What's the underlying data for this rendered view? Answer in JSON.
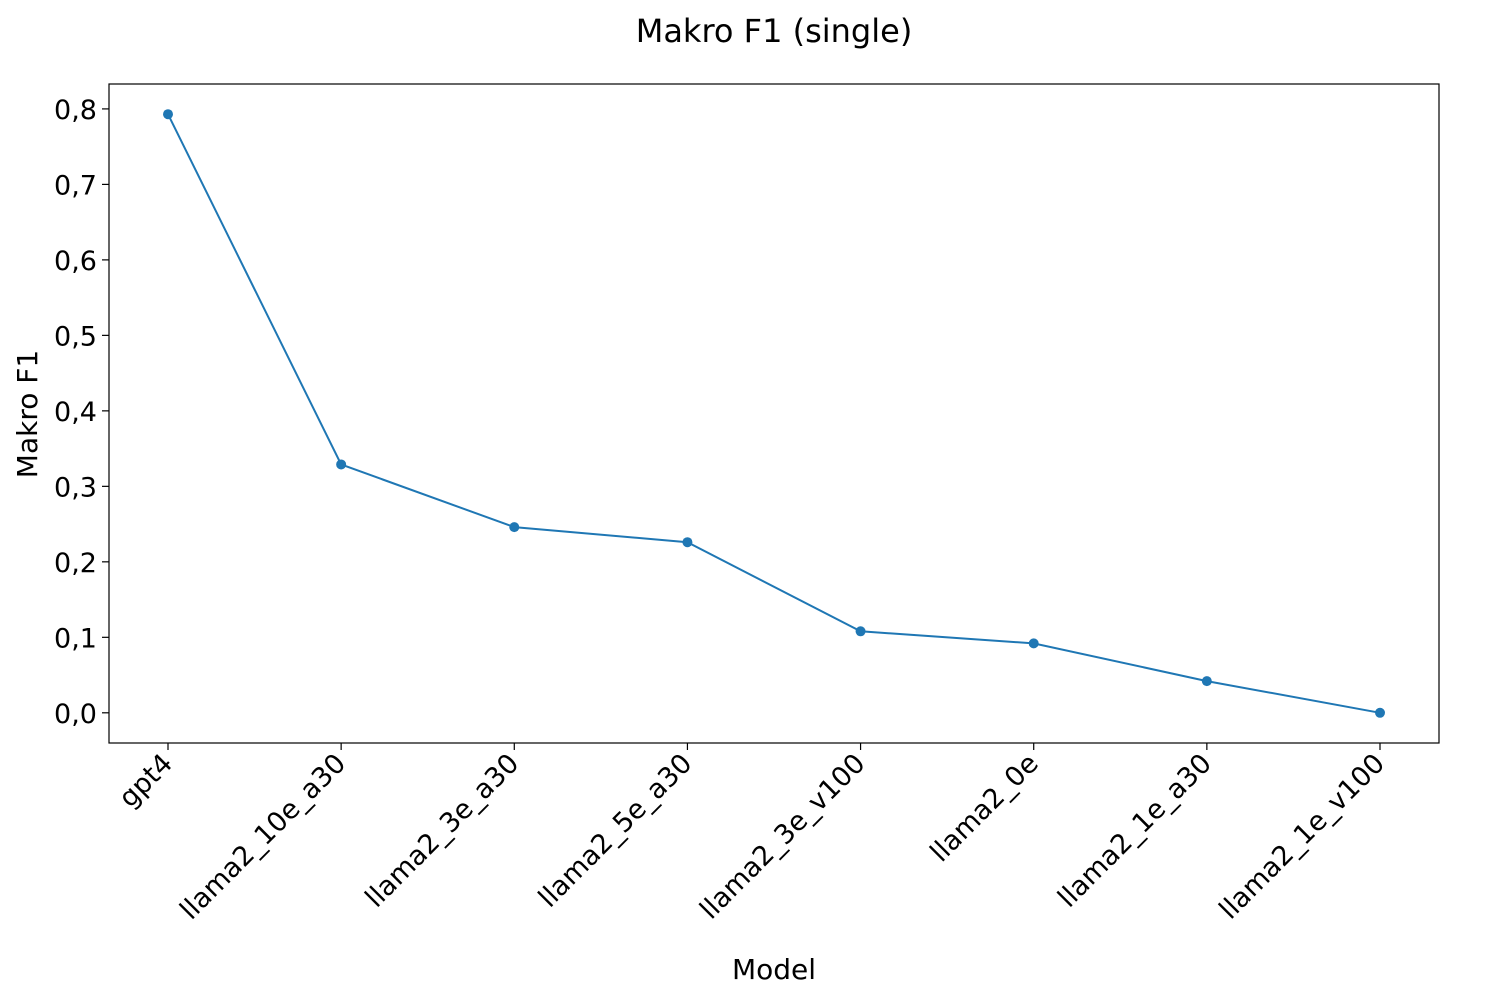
{
  "chart_data": {
    "type": "line",
    "title": "Makro F1 (single)",
    "xlabel": "Model",
    "ylabel": "Makro F1",
    "categories": [
      "gpt4",
      "llama2_10e_a30",
      "llama2_3e_a30",
      "llama2_5e_a30",
      "llama2_3e_v100",
      "llama2_0e",
      "llama2_1e_a30",
      "llama2_1e_v100"
    ],
    "series": [
      {
        "values": [
          0.793,
          0.329,
          0.246,
          0.226,
          0.108,
          0.092,
          0.042,
          0.0
        ]
      }
    ],
    "yticks": [
      0.0,
      0.1,
      0.2,
      0.3,
      0.4,
      0.5,
      0.6,
      0.7,
      0.8
    ],
    "ytick_labels": [
      "0,0",
      "0,1",
      "0,2",
      "0,3",
      "0,4",
      "0,5",
      "0,6",
      "0,7",
      "0,8"
    ],
    "ylim": [
      -0.04,
      0.833
    ],
    "grid": false,
    "line_color": "#1f77b4"
  }
}
